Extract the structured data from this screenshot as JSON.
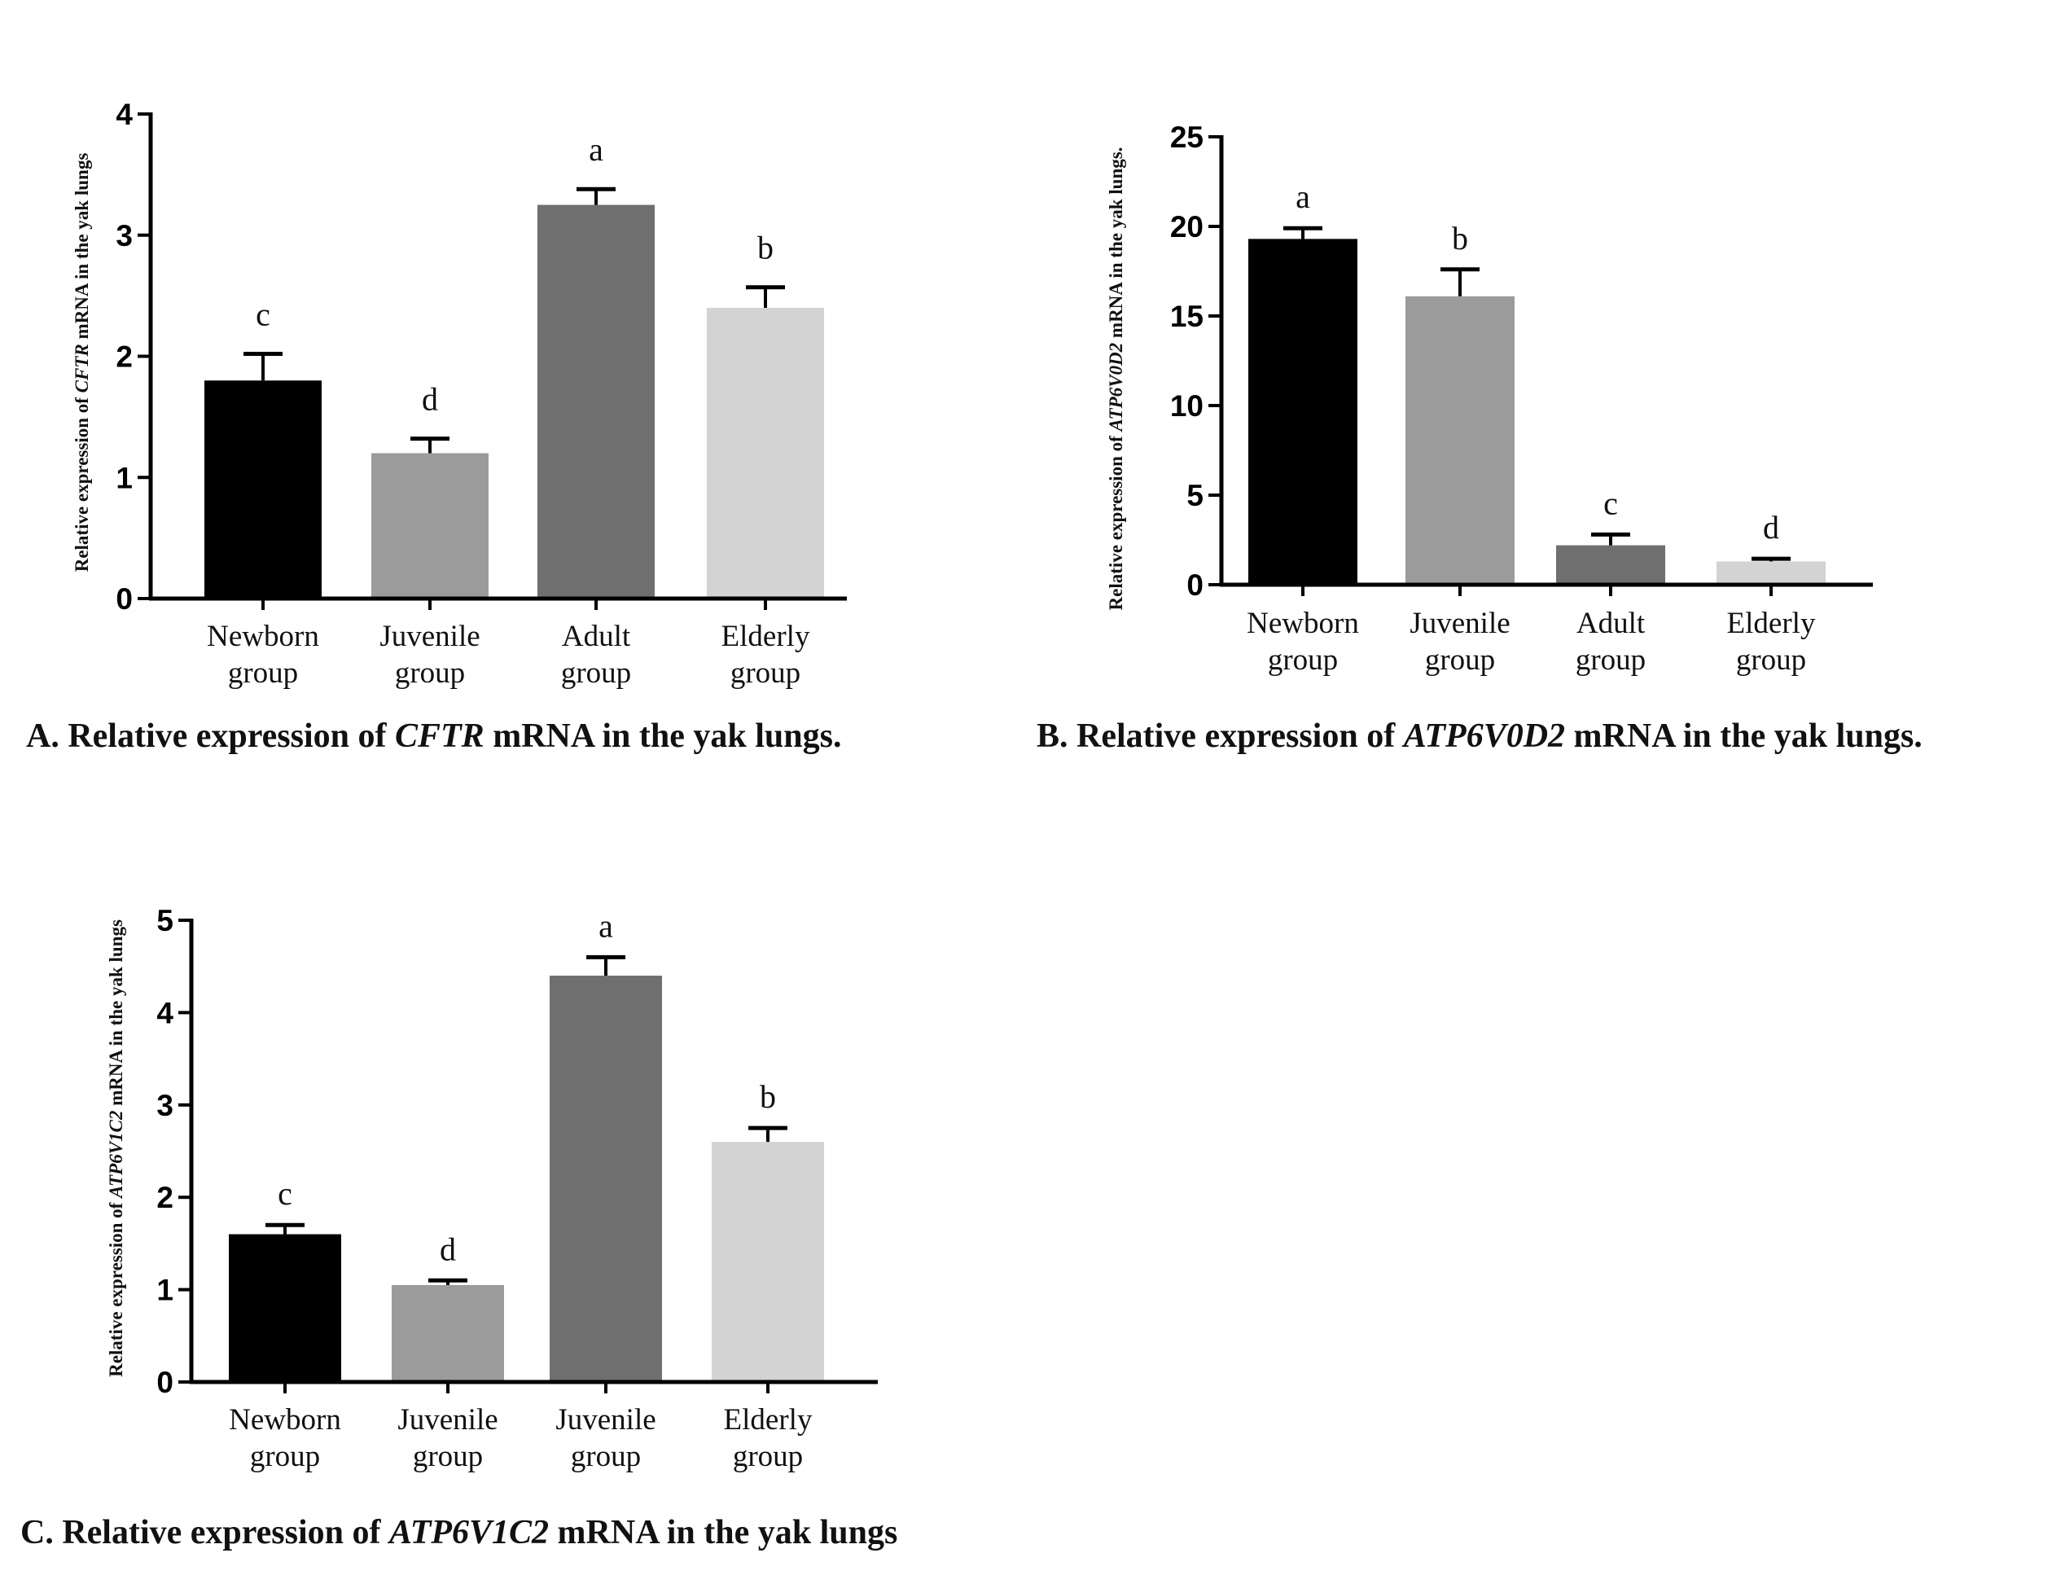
{
  "chart_data": [
    {
      "type": "bar",
      "panel": "A",
      "categories": [
        [
          "Newborn",
          "group"
        ],
        [
          "Juvenile",
          "group"
        ],
        [
          "Adult",
          "group"
        ],
        [
          "Elderly",
          "group"
        ]
      ],
      "values": [
        1.8,
        1.2,
        3.25,
        2.4
      ],
      "errors": [
        0.22,
        0.12,
        0.13,
        0.17
      ],
      "significance": [
        "c",
        "d",
        "a",
        "b"
      ],
      "colors": [
        "#000000",
        "#9b9b9b",
        "#6f6f6f",
        "#d3d3d3"
      ],
      "yticks": [
        0,
        1,
        2,
        3,
        4
      ],
      "ylim": [
        0,
        4
      ],
      "ylabel": {
        "pre": "Relative expression of ",
        "gene": "CFTR",
        "post": " mRNA in the yak lungs"
      },
      "caption": {
        "pre": "A. Relative expression of ",
        "gene": "CFTR",
        "post": " mRNA in the yak lungs."
      }
    },
    {
      "type": "bar",
      "panel": "B",
      "categories": [
        [
          "Newborn",
          "group"
        ],
        [
          "Juvenile",
          "group"
        ],
        [
          "Adult",
          "group"
        ],
        [
          "Elderly",
          "group"
        ]
      ],
      "values": [
        19.3,
        16.1,
        2.2,
        1.3
      ],
      "errors": [
        0.6,
        1.5,
        0.6,
        0.15
      ],
      "significance": [
        "a",
        "b",
        "c",
        "d"
      ],
      "colors": [
        "#000000",
        "#9b9b9b",
        "#6f6f6f",
        "#d3d3d3"
      ],
      "yticks": [
        0,
        5,
        10,
        15,
        20,
        25
      ],
      "ylim": [
        0,
        25
      ],
      "ylabel": {
        "pre": "Relative expression of ",
        "gene": "ATP6V0D2",
        "post": " mRNA in the yak lungs."
      },
      "caption": {
        "pre": "B. Relative expression of ",
        "gene": "ATP6V0D2",
        "post": " mRNA in the yak lungs."
      }
    },
    {
      "type": "bar",
      "panel": "C",
      "categories": [
        [
          "Newborn",
          "group"
        ],
        [
          "Juvenile",
          "group"
        ],
        [
          "Juvenile",
          "group"
        ],
        [
          "Elderly",
          "group"
        ]
      ],
      "values": [
        1.6,
        1.05,
        4.4,
        2.6
      ],
      "errors": [
        0.1,
        0.05,
        0.2,
        0.15
      ],
      "significance": [
        "c",
        "d",
        "a",
        "b"
      ],
      "colors": [
        "#000000",
        "#9b9b9b",
        "#6f6f6f",
        "#d3d3d3"
      ],
      "yticks": [
        0,
        1,
        2,
        3,
        4,
        5
      ],
      "ylim": [
        0,
        5
      ],
      "ylabel": {
        "pre": "Relative expression of ",
        "gene": "ATP6V1C2",
        "post": " mRNA in the yak lungs"
      },
      "caption": {
        "pre": "C. Relative expression of ",
        "gene": "ATP6V1C2",
        "post": " mRNA in the yak lungs"
      }
    }
  ]
}
